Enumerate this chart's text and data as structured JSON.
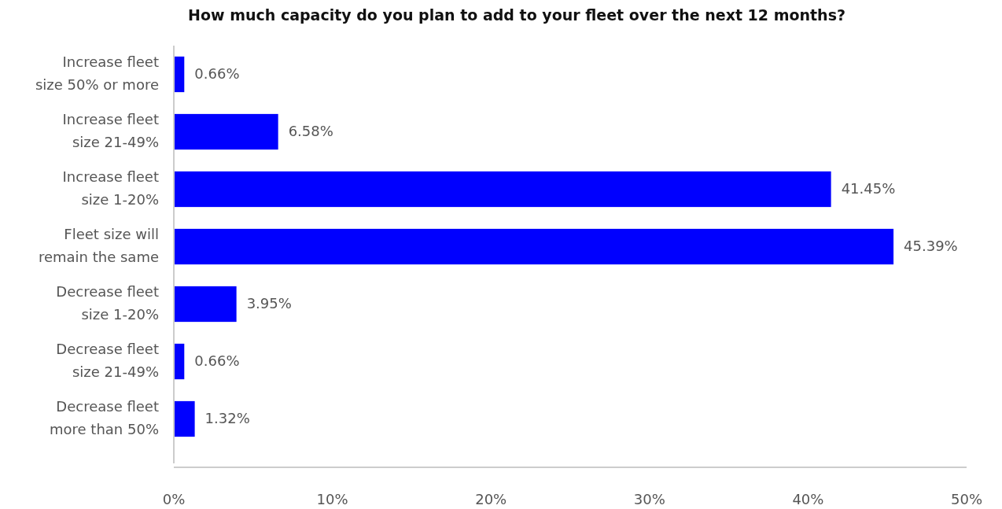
{
  "chart_data": {
    "type": "bar",
    "orientation": "horizontal",
    "title": "How much capacity do you plan to add to your fleet over the next 12 months?",
    "categories": [
      "Increase fleet size 50% or more",
      "Increase fleet size 21-49%",
      "Increase fleet size 1-20%",
      "Fleet size will remain the same",
      "Decrease fleet size 1-20%",
      "Decrease fleet size 21-49%",
      "Decrease fleet more than 50%"
    ],
    "values": [
      0.66,
      6.58,
      41.45,
      45.39,
      3.95,
      0.66,
      1.32
    ],
    "value_labels": [
      "0.66%",
      "6.58%",
      "41.45%",
      "45.39%",
      "3.95%",
      "0.66%",
      "1.32%"
    ],
    "color": "#0000ff",
    "xlim": [
      0,
      50
    ],
    "xticks": [
      {
        "value": 0,
        "label": "0%"
      },
      {
        "value": 10,
        "label": "10%"
      },
      {
        "value": 20,
        "label": "20%"
      },
      {
        "value": 30,
        "label": "30%"
      },
      {
        "value": 40,
        "label": "40%"
      },
      {
        "value": 50,
        "label": "50%"
      }
    ],
    "grid": false
  }
}
